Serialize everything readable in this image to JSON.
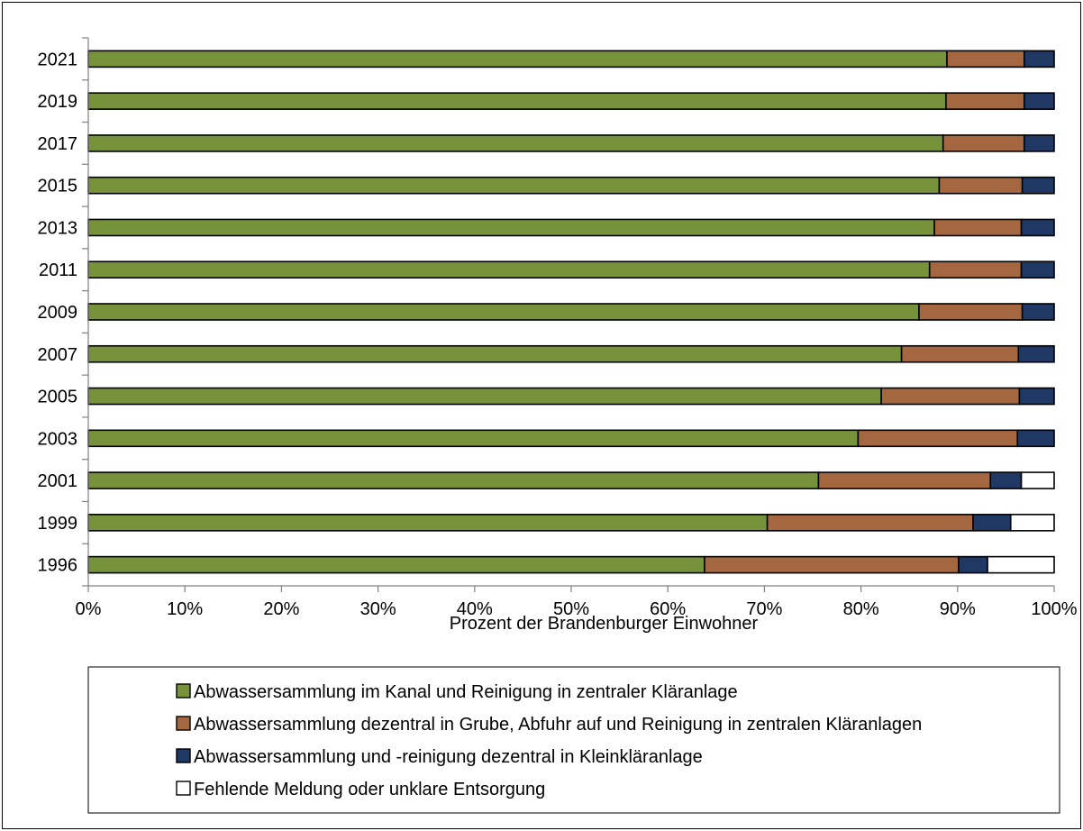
{
  "chart_data": {
    "type": "bar",
    "orientation": "horizontal",
    "stacked": "percent",
    "categories": [
      "2021",
      "2019",
      "2017",
      "2015",
      "2013",
      "2011",
      "2009",
      "2007",
      "2005",
      "2003",
      "2001",
      "1999",
      "1996"
    ],
    "series": [
      {
        "name": "Abwassersammlung im Kanal und Reinigung in zentraler Kläranlage",
        "color": "#76933c",
        "values": [
          88.9,
          88.8,
          88.5,
          88.1,
          87.6,
          87.1,
          86.0,
          84.2,
          82.1,
          79.7,
          75.6,
          70.3,
          63.8
        ]
      },
      {
        "name": "Abwassersammlung dezentral in Grube, Abfuhr auf und Reinigung in zentralen Kläranlagen",
        "color": "#a5673f",
        "values": [
          8.0,
          8.1,
          8.4,
          8.6,
          9.0,
          9.5,
          10.7,
          12.1,
          14.3,
          16.5,
          17.8,
          21.3,
          26.3
        ]
      },
      {
        "name": "Abwassersammlung und -reinigung dezentral in Kleinkläranlage",
        "color": "#1f3864",
        "values": [
          3.1,
          3.1,
          3.1,
          3.3,
          3.4,
          3.4,
          3.3,
          3.7,
          3.6,
          3.8,
          3.2,
          3.9,
          3.0
        ]
      },
      {
        "name": "Fehlende Meldung oder unklare Entsorgung",
        "color": "#ffffff",
        "values": [
          0,
          0,
          0,
          0,
          0,
          0,
          0,
          0,
          0,
          0,
          3.4,
          4.5,
          6.9
        ]
      }
    ],
    "xlabel": "Prozent der Brandenburger Einwohner",
    "ylabel": "",
    "xlim": [
      0,
      100
    ],
    "xticks": [
      "0%",
      "10%",
      "20%",
      "30%",
      "40%",
      "50%",
      "60%",
      "70%",
      "80%",
      "90%",
      "100%"
    ],
    "grid": false,
    "legend_position": "bottom"
  }
}
